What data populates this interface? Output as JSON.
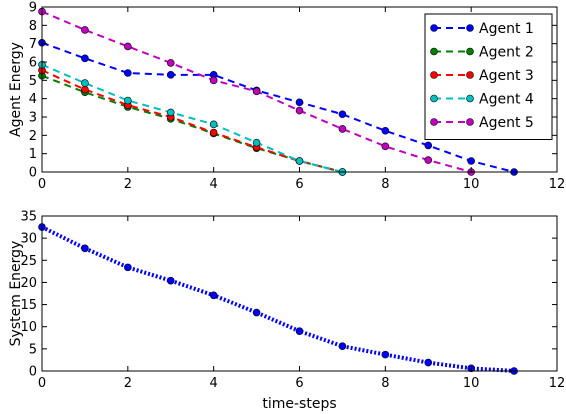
{
  "chart_data": [
    {
      "type": "line",
      "title": "",
      "xlabel": "",
      "ylabel": "Agent Energy",
      "xlim": [
        0,
        12
      ],
      "ylim": [
        0,
        9
      ],
      "xticks": [
        0,
        2,
        4,
        6,
        8,
        10,
        12
      ],
      "yticks": [
        0,
        1,
        2,
        3,
        4,
        5,
        6,
        7,
        8,
        9
      ],
      "grid": false,
      "legend_position": "top-right",
      "series": [
        {
          "name": "Agent 1",
          "color": "#0000ff",
          "x": [
            0,
            1,
            2,
            3,
            4,
            5,
            6,
            7,
            8,
            9,
            10,
            11
          ],
          "y": [
            7.05,
            6.2,
            5.4,
            5.3,
            5.3,
            4.45,
            3.8,
            3.15,
            2.25,
            1.45,
            0.6,
            0.0
          ]
        },
        {
          "name": "Agent 2",
          "color": "#008000",
          "x": [
            0,
            1,
            2,
            3,
            4,
            5,
            6,
            7
          ],
          "y": [
            5.25,
            4.35,
            3.55,
            2.9,
            2.1,
            1.3,
            0.6,
            0.0
          ]
        },
        {
          "name": "Agent 3",
          "color": "#ff0000",
          "x": [
            0,
            1,
            2,
            3,
            4,
            5,
            6,
            7
          ],
          "y": [
            5.55,
            4.5,
            3.65,
            3.0,
            2.15,
            1.35,
            0.6,
            0.0
          ]
        },
        {
          "name": "Agent 4",
          "color": "#00bfbf",
          "x": [
            0,
            1,
            2,
            3,
            4,
            5,
            6,
            7
          ],
          "y": [
            5.85,
            4.85,
            3.9,
            3.25,
            2.6,
            1.6,
            0.6,
            0.0
          ]
        },
        {
          "name": "Agent 5",
          "color": "#bf00bf",
          "x": [
            0,
            1,
            2,
            3,
            4,
            5,
            6,
            7,
            8,
            9,
            10
          ],
          "y": [
            8.75,
            7.75,
            6.85,
            5.95,
            5.0,
            4.4,
            3.35,
            2.35,
            1.4,
            0.65,
            0.0
          ]
        }
      ]
    },
    {
      "type": "line",
      "title": "",
      "xlabel": "time-steps",
      "ylabel": "System Energy",
      "xlim": [
        0,
        12
      ],
      "ylim": [
        0,
        35
      ],
      "xticks": [
        0,
        2,
        4,
        6,
        8,
        10,
        12
      ],
      "yticks": [
        0,
        5,
        10,
        15,
        20,
        25,
        30,
        35
      ],
      "grid": false,
      "series": [
        {
          "color": "#0000ff",
          "x": [
            0,
            1,
            2,
            3,
            4,
            5,
            6,
            7,
            8,
            9,
            10,
            11
          ],
          "y": [
            32.5,
            27.7,
            23.4,
            20.4,
            17.1,
            13.2,
            9.0,
            5.6,
            3.7,
            1.9,
            0.6,
            0.0
          ]
        }
      ]
    }
  ]
}
